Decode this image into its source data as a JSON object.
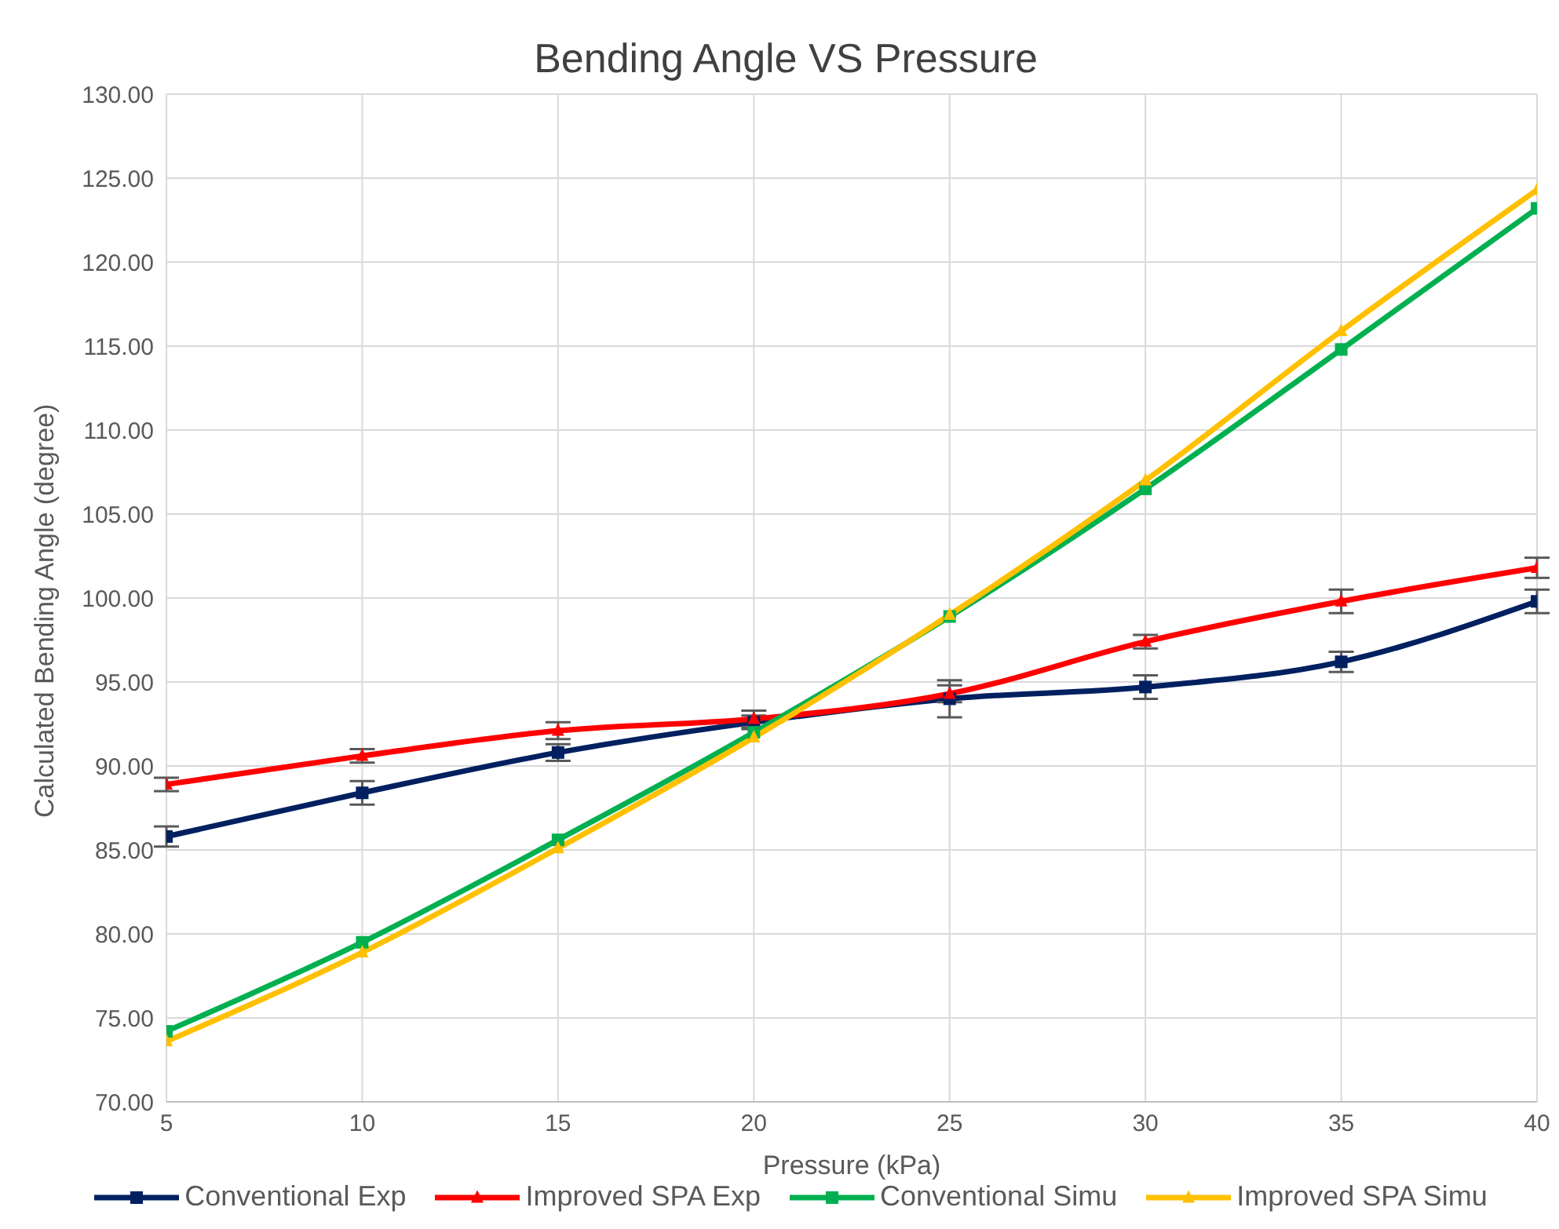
{
  "chart_data": {
    "type": "line",
    "title": "Bending Angle VS Pressure",
    "xlabel": "Pressure (kPa)",
    "ylabel": "Calculated Bending Angle (degree)",
    "x": [
      5,
      10,
      15,
      20,
      25,
      30,
      35,
      40
    ],
    "xlim": [
      5,
      40
    ],
    "xticks": [
      5,
      10,
      15,
      20,
      25,
      30,
      35,
      40
    ],
    "ylim": [
      70,
      130
    ],
    "yticks": [
      {
        "value": 70,
        "label": "70.00"
      },
      {
        "value": 75,
        "label": "75.00"
      },
      {
        "value": 80,
        "label": "80.00"
      },
      {
        "value": 85,
        "label": "85.00"
      },
      {
        "value": 90,
        "label": "90.00"
      },
      {
        "value": 95,
        "label": "95.00"
      },
      {
        "value": 100,
        "label": "100.00"
      },
      {
        "value": 105,
        "label": "105.00"
      },
      {
        "value": 110,
        "label": "110.00"
      },
      {
        "value": 115,
        "label": "115.00"
      },
      {
        "value": 120,
        "label": "120.00"
      },
      {
        "value": 125,
        "label": "125.00"
      },
      {
        "value": 130,
        "label": "130.00"
      }
    ],
    "grid": true,
    "legend": "bottom",
    "series": [
      {
        "name": "Conventional Exp",
        "color": "#002060",
        "marker": "square",
        "values": [
          85.8,
          88.4,
          90.8,
          92.6,
          94.0,
          94.7,
          96.2,
          99.8
        ],
        "errors": [
          0.6,
          0.7,
          0.5,
          0.4,
          1.1,
          0.7,
          0.6,
          0.7
        ]
      },
      {
        "name": "Improved SPA Exp",
        "color": "#ff0000",
        "marker": "triangle",
        "values": [
          88.9,
          90.6,
          92.1,
          92.8,
          94.3,
          97.4,
          99.8,
          101.8
        ],
        "errors": [
          0.4,
          0.4,
          0.5,
          0.5,
          0.5,
          0.4,
          0.7,
          0.6
        ]
      },
      {
        "name": "Conventional Simu",
        "color": "#00b050",
        "marker": "square",
        "values": [
          74.2,
          79.5,
          85.6,
          92.0,
          98.9,
          106.5,
          114.8,
          123.2
        ]
      },
      {
        "name": "Improved SPA Simu",
        "color": "#ffc000",
        "marker": "triangle",
        "values": [
          73.6,
          78.9,
          85.1,
          91.7,
          99.0,
          107.0,
          115.9,
          124.3
        ]
      }
    ]
  }
}
